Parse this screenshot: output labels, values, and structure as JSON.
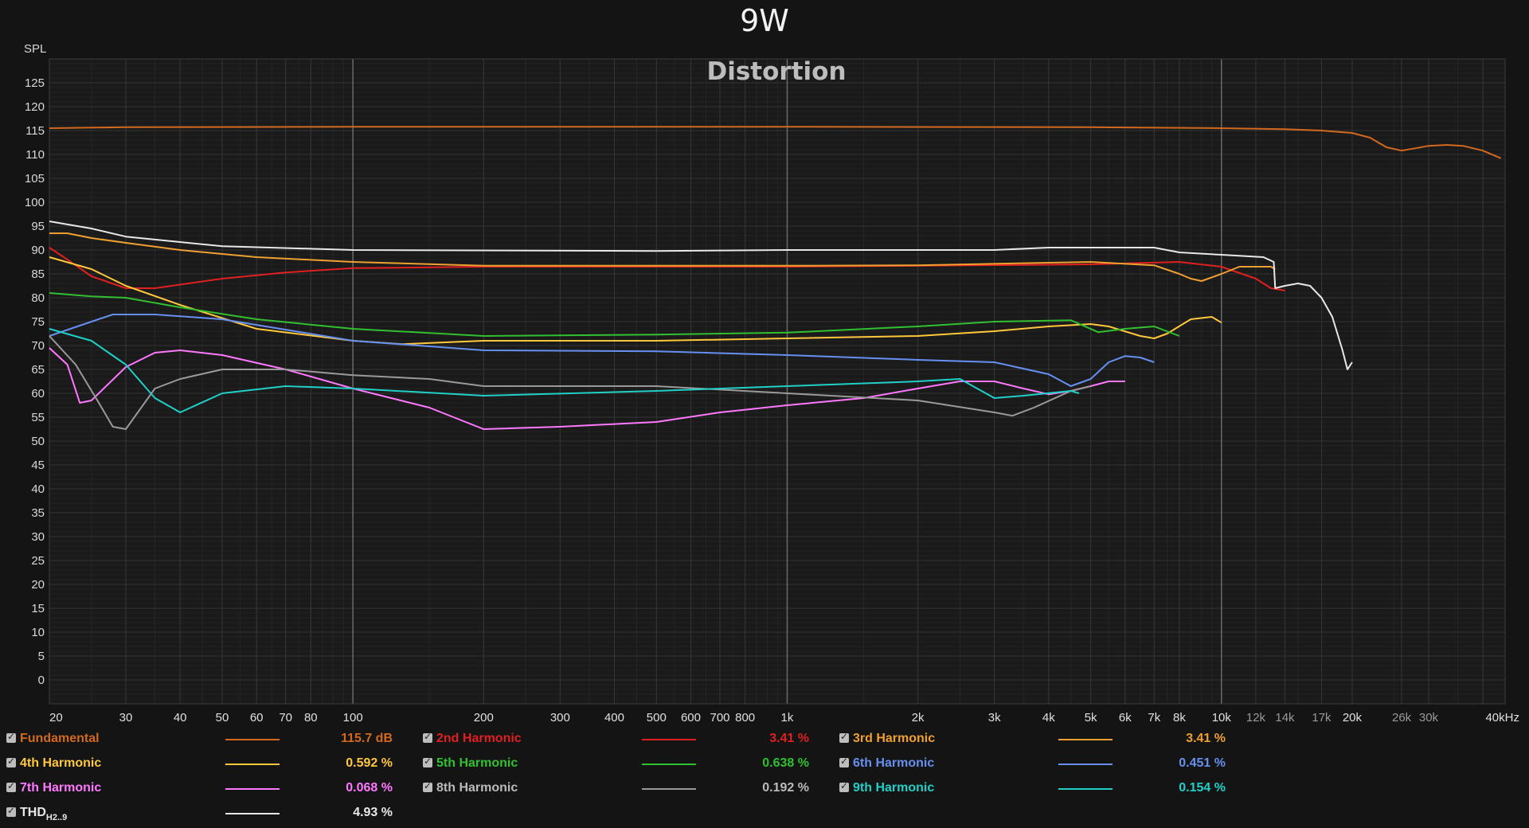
{
  "header": {
    "title": "9W"
  },
  "chart_data": {
    "type": "line",
    "title": "Distortion",
    "ylabel": "SPL",
    "xlabel": "",
    "xscale": "log",
    "xlim": [
      20,
      45000
    ],
    "ylim": [
      -5,
      130
    ],
    "yticks": [
      0,
      5,
      10,
      15,
      20,
      25,
      30,
      35,
      40,
      45,
      50,
      55,
      60,
      65,
      70,
      75,
      80,
      85,
      90,
      95,
      100,
      105,
      110,
      115,
      120,
      125
    ],
    "xticks": [
      {
        "v": 20,
        "label": "20"
      },
      {
        "v": 30,
        "label": "30"
      },
      {
        "v": 40,
        "label": "40"
      },
      {
        "v": 50,
        "label": "50"
      },
      {
        "v": 60,
        "label": "60"
      },
      {
        "v": 70,
        "label": "70"
      },
      {
        "v": 80,
        "label": "80"
      },
      {
        "v": 100,
        "label": "100"
      },
      {
        "v": 200,
        "label": "200"
      },
      {
        "v": 300,
        "label": "300"
      },
      {
        "v": 400,
        "label": "400"
      },
      {
        "v": 500,
        "label": "500"
      },
      {
        "v": 600,
        "label": "600"
      },
      {
        "v": 700,
        "label": "700"
      },
      {
        "v": 800,
        "label": "800"
      },
      {
        "v": 1000,
        "label": "1k"
      },
      {
        "v": 2000,
        "label": "2k"
      },
      {
        "v": 3000,
        "label": "3k"
      },
      {
        "v": 4000,
        "label": "4k"
      },
      {
        "v": 5000,
        "label": "5k"
      },
      {
        "v": 6000,
        "label": "6k"
      },
      {
        "v": 7000,
        "label": "7k"
      },
      {
        "v": 8000,
        "label": "8k"
      },
      {
        "v": 10000,
        "label": "10k"
      },
      {
        "v": 12000,
        "label": "12k"
      },
      {
        "v": 14000,
        "label": "14k"
      },
      {
        "v": 17000,
        "label": "17k"
      },
      {
        "v": 20000,
        "label": "20k"
      },
      {
        "v": 26000,
        "label": "26k"
      },
      {
        "v": 30000,
        "label": "30k"
      },
      {
        "v": 40000,
        "label": "40kHz"
      }
    ],
    "grid": true,
    "legend_position": "bottom",
    "series": [
      {
        "name": "Fundamental",
        "color": "#d2691e",
        "value": "115.7 dB",
        "points": [
          [
            20,
            115.5
          ],
          [
            30,
            115.7
          ],
          [
            100,
            115.8
          ],
          [
            1000,
            115.8
          ],
          [
            5000,
            115.7
          ],
          [
            10000,
            115.5
          ],
          [
            14000,
            115.3
          ],
          [
            17000,
            115
          ],
          [
            20000,
            114.5
          ],
          [
            22000,
            113.5
          ],
          [
            24000,
            111.5
          ],
          [
            26000,
            110.8
          ],
          [
            28000,
            111.3
          ],
          [
            30000,
            111.8
          ],
          [
            33000,
            112
          ],
          [
            36000,
            111.8
          ],
          [
            40000,
            110.8
          ],
          [
            44000,
            109.2
          ]
        ]
      },
      {
        "name": "2nd Harmonic",
        "color": "#e02020",
        "value": "3.41 %",
        "points": [
          [
            20,
            90.5
          ],
          [
            22,
            88
          ],
          [
            25,
            84.5
          ],
          [
            30,
            82
          ],
          [
            35,
            82
          ],
          [
            50,
            84
          ],
          [
            70,
            85.3
          ],
          [
            100,
            86.2
          ],
          [
            200,
            86.5
          ],
          [
            500,
            86.5
          ],
          [
            1000,
            86.5
          ],
          [
            2000,
            86.7
          ],
          [
            5000,
            87
          ],
          [
            8000,
            87.5
          ],
          [
            10000,
            86.5
          ],
          [
            12000,
            84
          ],
          [
            13000,
            82
          ],
          [
            14000,
            81.5
          ]
        ]
      },
      {
        "name": "3rd Harmonic",
        "color": "#f0a030",
        "value": "3.41 %",
        "points": [
          [
            20,
            93.5
          ],
          [
            22,
            93.5
          ],
          [
            25,
            92.5
          ],
          [
            30,
            91.5
          ],
          [
            40,
            90
          ],
          [
            60,
            88.5
          ],
          [
            100,
            87.5
          ],
          [
            200,
            86.7
          ],
          [
            500,
            86.7
          ],
          [
            1000,
            86.7
          ],
          [
            2000,
            86.8
          ],
          [
            5000,
            87.5
          ],
          [
            7000,
            86.8
          ],
          [
            8000,
            85
          ],
          [
            8500,
            84
          ],
          [
            9000,
            83.5
          ],
          [
            10000,
            85
          ],
          [
            11000,
            86.5
          ],
          [
            13000,
            86.5
          ],
          [
            13300,
            86
          ]
        ]
      },
      {
        "name": "4th Harmonic",
        "color": "#ffc83c",
        "value": "0.592 %",
        "points": [
          [
            20,
            88.5
          ],
          [
            25,
            86
          ],
          [
            30,
            82.5
          ],
          [
            40,
            78.5
          ],
          [
            60,
            73.5
          ],
          [
            100,
            71
          ],
          [
            130,
            70.3
          ],
          [
            200,
            71
          ],
          [
            500,
            71
          ],
          [
            1000,
            71.5
          ],
          [
            2000,
            72
          ],
          [
            3000,
            73
          ],
          [
            4000,
            74
          ],
          [
            5000,
            74.5
          ],
          [
            5500,
            74
          ],
          [
            6500,
            72
          ],
          [
            7000,
            71.5
          ],
          [
            7500,
            72.5
          ],
          [
            8500,
            75.5
          ],
          [
            9500,
            76
          ],
          [
            10000,
            74.8
          ]
        ]
      },
      {
        "name": "5th Harmonic",
        "color": "#30c030",
        "value": "0.638 %",
        "points": [
          [
            20,
            81
          ],
          [
            25,
            80.3
          ],
          [
            30,
            80
          ],
          [
            40,
            78
          ],
          [
            60,
            75.5
          ],
          [
            100,
            73.5
          ],
          [
            200,
            72
          ],
          [
            500,
            72.3
          ],
          [
            1000,
            72.7
          ],
          [
            2000,
            74
          ],
          [
            3000,
            75
          ],
          [
            4500,
            75.3
          ],
          [
            5200,
            72.8
          ],
          [
            6000,
            73.5
          ],
          [
            7000,
            74
          ],
          [
            8000,
            72
          ]
        ]
      },
      {
        "name": "6th Harmonic",
        "color": "#6690f0",
        "value": "0.451 %",
        "points": [
          [
            20,
            72
          ],
          [
            25,
            75
          ],
          [
            28,
            76.5
          ],
          [
            35,
            76.5
          ],
          [
            50,
            75.5
          ],
          [
            100,
            71
          ],
          [
            200,
            69
          ],
          [
            500,
            68.8
          ],
          [
            1000,
            68
          ],
          [
            2000,
            67
          ],
          [
            3000,
            66.5
          ],
          [
            4000,
            64
          ],
          [
            4500,
            61.5
          ],
          [
            5000,
            63
          ],
          [
            5500,
            66.5
          ],
          [
            6000,
            67.8
          ],
          [
            6500,
            67.5
          ],
          [
            7000,
            66.5
          ]
        ]
      },
      {
        "name": "7th Harmonic",
        "color": "#ff78ff",
        "value": "0.068 %",
        "points": [
          [
            20,
            69.5
          ],
          [
            22,
            66
          ],
          [
            23.5,
            58
          ],
          [
            25,
            58.5
          ],
          [
            30,
            65.5
          ],
          [
            35,
            68.5
          ],
          [
            40,
            69
          ],
          [
            50,
            68
          ],
          [
            70,
            65
          ],
          [
            100,
            61
          ],
          [
            150,
            57
          ],
          [
            200,
            52.5
          ],
          [
            300,
            53
          ],
          [
            500,
            54
          ],
          [
            700,
            56
          ],
          [
            1000,
            57.5
          ],
          [
            1500,
            59
          ],
          [
            2000,
            61
          ],
          [
            2500,
            62.5
          ],
          [
            3000,
            62.5
          ],
          [
            3500,
            61
          ],
          [
            4000,
            59.8
          ],
          [
            4500,
            60.5
          ],
          [
            5000,
            61.5
          ],
          [
            5500,
            62.5
          ],
          [
            6000,
            62.5
          ]
        ]
      },
      {
        "name": "8th Harmonic",
        "color": "#9a9a9a",
        "value": "0.192 %",
        "points": [
          [
            20,
            72
          ],
          [
            23,
            66
          ],
          [
            26,
            58
          ],
          [
            28,
            53
          ],
          [
            30,
            52.5
          ],
          [
            35,
            61
          ],
          [
            40,
            63
          ],
          [
            50,
            65
          ],
          [
            70,
            65
          ],
          [
            100,
            63.8
          ],
          [
            150,
            63
          ],
          [
            200,
            61.5
          ],
          [
            500,
            61.5
          ],
          [
            1000,
            60
          ],
          [
            2000,
            58.5
          ],
          [
            3000,
            56
          ],
          [
            3300,
            55.3
          ],
          [
            3700,
            57
          ],
          [
            4500,
            60.5
          ],
          [
            5000,
            61.5
          ]
        ]
      },
      {
        "name": "9th Harmonic",
        "color": "#20d0c8",
        "value": "0.154 %",
        "points": [
          [
            20,
            73.5
          ],
          [
            25,
            71
          ],
          [
            30,
            66
          ],
          [
            35,
            59
          ],
          [
            40,
            56
          ],
          [
            50,
            60
          ],
          [
            70,
            61.5
          ],
          [
            100,
            61
          ],
          [
            200,
            59.5
          ],
          [
            500,
            60.5
          ],
          [
            1000,
            61.5
          ],
          [
            2000,
            62.5
          ],
          [
            2500,
            63
          ],
          [
            3000,
            59
          ],
          [
            3500,
            59.5
          ],
          [
            4500,
            60.5
          ],
          [
            4700,
            60
          ]
        ]
      },
      {
        "name": "THD",
        "subscript": "H2..9",
        "color": "#e8e8e8",
        "value": "4.93 %",
        "points": [
          [
            20,
            96
          ],
          [
            25,
            94.5
          ],
          [
            30,
            92.8
          ],
          [
            50,
            90.8
          ],
          [
            100,
            90
          ],
          [
            500,
            89.8
          ],
          [
            1000,
            90
          ],
          [
            3000,
            90
          ],
          [
            4000,
            90.5
          ],
          [
            7000,
            90.5
          ],
          [
            8000,
            89.5
          ],
          [
            10000,
            89
          ],
          [
            12500,
            88.5
          ],
          [
            13200,
            87.5
          ],
          [
            13300,
            82
          ],
          [
            14000,
            82.5
          ],
          [
            15000,
            83
          ],
          [
            16000,
            82.5
          ],
          [
            17000,
            80
          ],
          [
            18000,
            76
          ],
          [
            19000,
            69
          ],
          [
            19500,
            65
          ],
          [
            20000,
            66.5
          ]
        ]
      }
    ]
  }
}
